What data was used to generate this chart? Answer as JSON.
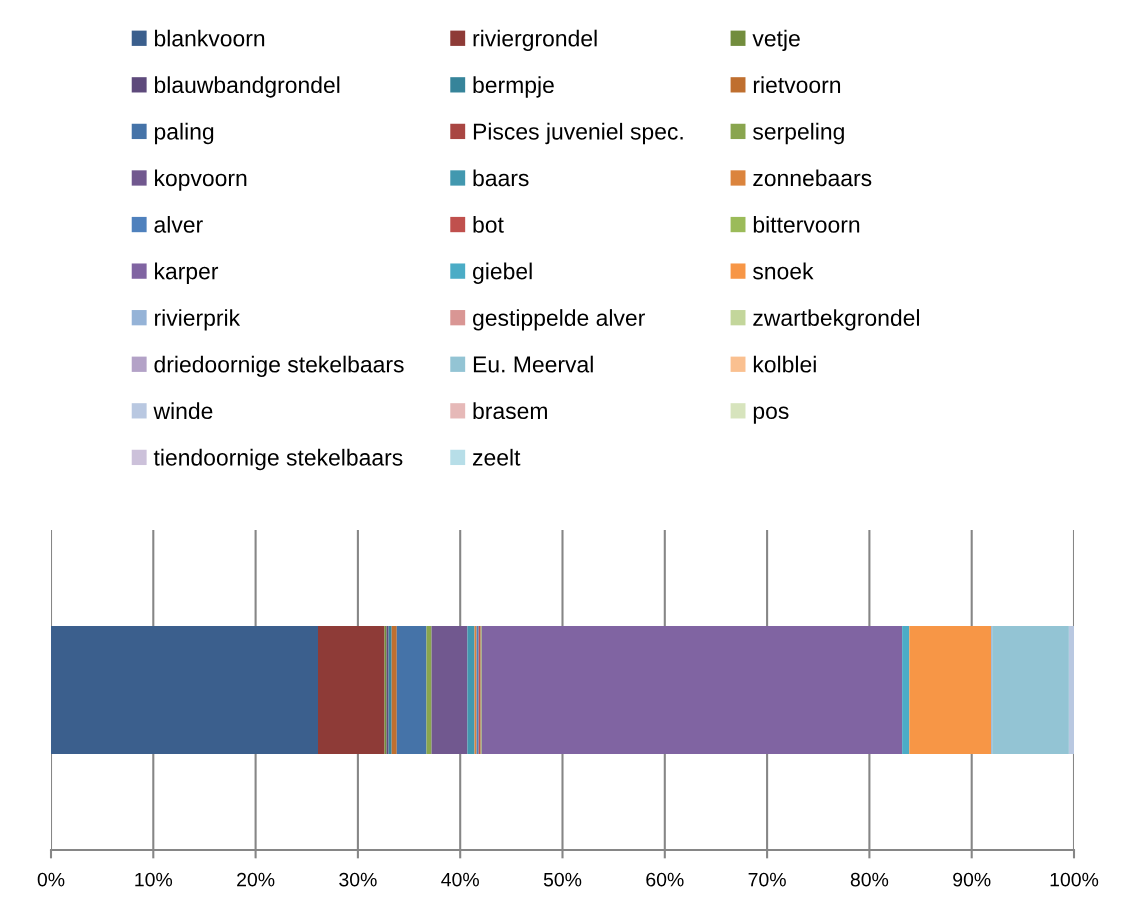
{
  "chart_data": {
    "type": "bar",
    "orientation": "horizontal",
    "stacked": true,
    "categories": [
      null
    ],
    "series": [
      {
        "name": "blankvoorn",
        "color": "#3b5f8d",
        "values": [
          26.1
        ]
      },
      {
        "name": "riviergrondel",
        "color": "#8e3b37",
        "values": [
          6.5
        ]
      },
      {
        "name": "vetje",
        "color": "#728d3d",
        "values": [
          0.2
        ]
      },
      {
        "name": "blauwbandgrondel",
        "color": "#5e4a7c",
        "values": [
          0.2
        ]
      },
      {
        "name": "bermpje",
        "color": "#36849a",
        "values": [
          0.3
        ]
      },
      {
        "name": "rietvoorn",
        "color": "#bf6f2f",
        "values": [
          0.5
        ]
      },
      {
        "name": "paling",
        "color": "#4573a8",
        "values": [
          2.9
        ]
      },
      {
        "name": "Pisces juveniel spec.",
        "color": "#a94642",
        "values": [
          0
        ]
      },
      {
        "name": "serpeling",
        "color": "#89a54e",
        "values": [
          0.5
        ]
      },
      {
        "name": "kopvoorn",
        "color": "#71588f",
        "values": [
          3.5
        ]
      },
      {
        "name": "baars",
        "color": "#4298af",
        "values": [
          0.7
        ]
      },
      {
        "name": "zonnebaars",
        "color": "#db843d",
        "values": [
          0.2
        ]
      },
      {
        "name": "alver",
        "color": "#4f81bd",
        "values": [
          0.2
        ]
      },
      {
        "name": "bot",
        "color": "#c0504d",
        "values": [
          0.2
        ]
      },
      {
        "name": "bittervoorn",
        "color": "#9bbb59",
        "values": [
          0.1
        ]
      },
      {
        "name": "karper",
        "color": "#8064a2",
        "values": [
          41.1
        ]
      },
      {
        "name": "giebel",
        "color": "#4bacc6",
        "values": [
          0.7
        ]
      },
      {
        "name": "snoek",
        "color": "#f79646",
        "values": [
          8.0
        ]
      },
      {
        "name": "rivierprik",
        "color": "#95b3d7",
        "values": [
          0.1
        ]
      },
      {
        "name": "gestippelde alver",
        "color": "#d99694",
        "values": [
          0
        ]
      },
      {
        "name": "zwartbekgrondel",
        "color": "#c3d69b",
        "values": [
          0
        ]
      },
      {
        "name": "driedoornige stekelbaars",
        "color": "#b3a2c7",
        "values": [
          0
        ]
      },
      {
        "name": "Eu. Meerval",
        "color": "#93c4d4",
        "values": [
          7.5
        ]
      },
      {
        "name": "kolblei",
        "color": "#fac090",
        "values": [
          0
        ]
      },
      {
        "name": "winde",
        "color": "#b9c8e1",
        "values": [
          0.5
        ]
      },
      {
        "name": "brasem",
        "color": "#e6b9b8",
        "values": [
          0
        ]
      },
      {
        "name": "pos",
        "color": "#d7e4bd",
        "values": [
          0
        ]
      },
      {
        "name": "tiendoornige stekelbaars",
        "color": "#ccc1da",
        "values": [
          0
        ]
      },
      {
        "name": "zeelt",
        "color": "#b7dee8",
        "values": [
          0
        ]
      }
    ],
    "xlim": [
      0,
      100
    ],
    "xticks": [
      {
        "value": 0,
        "label": "0%"
      },
      {
        "value": 10,
        "label": "10%"
      },
      {
        "value": 20,
        "label": "20%"
      },
      {
        "value": 30,
        "label": "30%"
      },
      {
        "value": 40,
        "label": "40%"
      },
      {
        "value": 50,
        "label": "50%"
      },
      {
        "value": 60,
        "label": "60%"
      },
      {
        "value": 70,
        "label": "70%"
      },
      {
        "value": 80,
        "label": "80%"
      },
      {
        "value": 90,
        "label": "90%"
      },
      {
        "value": 100,
        "label": "100%"
      }
    ],
    "grid": "x",
    "legend": "top",
    "tick_labels": "x"
  }
}
